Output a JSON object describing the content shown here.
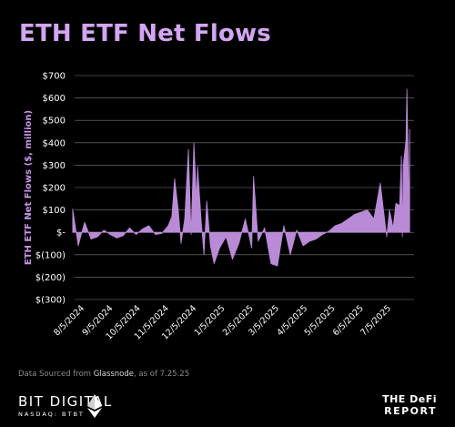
{
  "title": "ETH ETF Net Flows",
  "source_prefix": "Data Sourced from ",
  "source_name": "Glassnode",
  "source_suffix": ", as of 7.25.25",
  "brand_left_name": "BIT DIGITAL",
  "brand_left_ticker": "NASDAQ: BTBT",
  "brand_right_line1": "THE DeFi",
  "brand_right_line2": "REPORT",
  "colors": {
    "accent": "#c894e8",
    "area": "#b98ad6",
    "grid": "#a8a8a8",
    "background": "#000000"
  },
  "chart_data": {
    "type": "area",
    "title": "ETH ETF Net Flows",
    "ylabel": "ETH ETF Net Flows ($, million)",
    "xlabel": "",
    "ylim": [
      -300,
      700
    ],
    "yticks": [
      700,
      600,
      500,
      400,
      300,
      200,
      100,
      0,
      -100,
      -200,
      -300
    ],
    "ytick_labels": [
      "$700",
      "$600",
      "$500",
      "$400",
      "$300",
      "$200",
      "$100",
      "$-",
      "$(100)",
      "$(200)",
      "$(300)"
    ],
    "xtick_labels": [
      "8/5/2024",
      "9/5/2024",
      "10/5/2024",
      "11/5/2024",
      "12/5/2024",
      "1/5/2025",
      "2/5/2025",
      "3/5/2025",
      "4/5/2025",
      "5/5/2025",
      "6/5/2025",
      "7/5/2025"
    ],
    "grid": true,
    "legend": "none",
    "series": [
      {
        "name": "",
        "x": [
          "7/23/2024",
          "7/29/2024",
          "8/5/2024",
          "8/12/2024",
          "8/19/2024",
          "8/26/2024",
          "9/2/2024",
          "9/9/2024",
          "9/16/2024",
          "9/23/2024",
          "9/30/2024",
          "10/7/2024",
          "10/14/2024",
          "10/21/2024",
          "10/28/2024",
          "11/4/2024",
          "11/8/2024",
          "11/11/2024",
          "11/15/2024",
          "11/18/2024",
          "11/22/2024",
          "11/26/2024",
          "11/29/2024",
          "12/2/2024",
          "12/5/2024",
          "12/6/2024",
          "12/10/2024",
          "12/13/2024",
          "12/16/2024",
          "12/20/2024",
          "12/24/2024",
          "12/30/2024",
          "1/6/2025",
          "1/13/2025",
          "1/20/2025",
          "1/27/2025",
          "2/3/2025",
          "2/5/2025",
          "2/10/2025",
          "2/17/2025",
          "2/24/2025",
          "3/3/2025",
          "3/10/2025",
          "3/17/2025",
          "3/24/2025",
          "3/31/2025",
          "4/7/2025",
          "4/14/2025",
          "4/21/2025",
          "4/28/2025",
          "5/5/2025",
          "5/12/2025",
          "5/19/2025",
          "5/26/2025",
          "6/2/2025",
          "6/9/2025",
          "6/16/2025",
          "6/23/2025",
          "6/30/2025",
          "7/3/2025",
          "7/7/2025",
          "7/10/2025",
          "7/14/2025",
          "7/16/2025",
          "7/17/2025",
          "7/18/2025",
          "7/21/2025",
          "7/22/2025",
          "7/23/2025",
          "7/24/2025",
          "7/25/2025"
        ],
        "values": [
          105,
          -60,
          45,
          -30,
          -20,
          10,
          -10,
          -25,
          -15,
          20,
          -10,
          15,
          30,
          -10,
          -5,
          30,
          70,
          240,
          100,
          -50,
          60,
          370,
          -10,
          400,
          140,
          295,
          50,
          -100,
          140,
          -60,
          -140,
          -70,
          -20,
          -120,
          -50,
          60,
          -70,
          250,
          -40,
          20,
          -140,
          -150,
          30,
          -100,
          10,
          -60,
          -40,
          -30,
          -10,
          5,
          30,
          40,
          60,
          80,
          90,
          100,
          60,
          220,
          -20,
          100,
          20,
          130,
          120,
          340,
          -20,
          300,
          410,
          640,
          420,
          80,
          460
        ]
      }
    ]
  }
}
